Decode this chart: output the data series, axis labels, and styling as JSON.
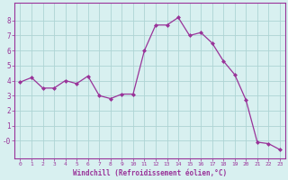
{
  "x": [
    0,
    1,
    2,
    3,
    4,
    5,
    6,
    7,
    8,
    9,
    10,
    11,
    12,
    13,
    14,
    15,
    16,
    17,
    18,
    19,
    20,
    21,
    22,
    23
  ],
  "y": [
    3.9,
    4.2,
    3.5,
    3.5,
    4.0,
    3.8,
    4.3,
    3.0,
    2.8,
    3.1,
    3.1,
    6.0,
    7.7,
    7.7,
    8.2,
    7.0,
    7.2,
    6.5,
    5.3,
    4.4,
    2.7,
    -0.1,
    -0.2,
    -0.6
  ],
  "line_color": "#993399",
  "marker": "D",
  "markersize": 2.0,
  "linewidth": 0.9,
  "bg_color": "#d8f0f0",
  "grid_color": "#aed4d4",
  "xlabel": "Windchill (Refroidissement éolien,°C)",
  "xlabel_color": "#993399",
  "tick_color": "#993399",
  "yticks": [
    0,
    1,
    2,
    3,
    4,
    5,
    6,
    7,
    8
  ],
  "ytick_labels": [
    "-0",
    "1",
    "2",
    "3",
    "4",
    "5",
    "6",
    "7",
    "8"
  ],
  "xlim": [
    -0.5,
    23.5
  ],
  "ylim": [
    -1.2,
    9.2
  ],
  "spine_color": "#993399"
}
